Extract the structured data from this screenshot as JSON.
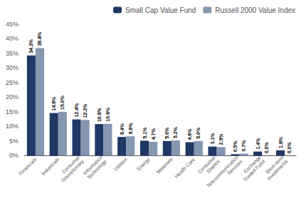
{
  "chart_data": {
    "type": "bar",
    "categories": [
      "Financials",
      "Industrials",
      "Consumer\nDiscretionary",
      "Information\nTechnology",
      "Utilities",
      "Energy",
      "Materials",
      "Health Care",
      "Consumer\nStaples",
      "Telecommunication\nServices",
      "Exchange\nTraded Fund",
      "Short-term\nInvestments"
    ],
    "series": [
      {
        "name": "Small Cap Value Fund",
        "color": "#1f3864",
        "values": [
          34.3,
          14.6,
          12.4,
          10.8,
          6.4,
          5.1,
          5.0,
          4.6,
          3.1,
          0.5,
          1.4,
          1.8
        ],
        "value_labels": [
          "34.3%",
          "14.6%",
          "12.4%",
          "10.8%",
          "6.4%",
          "5.1%",
          "5.0%",
          "4.6%",
          "3.1%",
          "0.5%",
          "1.4%",
          "1.8%"
        ]
      },
      {
        "name": "Russell 2000 Value Index",
        "color": "#8496b0",
        "values": [
          36.8,
          15.0,
          12.2,
          10.9,
          6.6,
          4.7,
          5.2,
          5.0,
          2.9,
          0.7,
          0.0,
          0.0
        ],
        "value_labels": [
          "36.8%",
          "15.0%",
          "12.2%",
          "10.9%",
          "6.6%",
          "4.7%",
          "5.2%",
          "5.0%",
          "2.9%",
          "0.7%",
          "0.0%",
          "0.0%"
        ]
      }
    ],
    "ylim": [
      0,
      45
    ],
    "yticks": [
      {
        "value": 0,
        "label": "0%"
      },
      {
        "value": 5,
        "label": "5%"
      },
      {
        "value": 10,
        "label": "10%"
      },
      {
        "value": 15,
        "label": "15%"
      },
      {
        "value": 20,
        "label": "20%"
      },
      {
        "value": 25,
        "label": "25%"
      },
      {
        "value": 30,
        "label": "30%"
      },
      {
        "value": 35,
        "label": "35%"
      },
      {
        "value": 40,
        "label": "40%"
      },
      {
        "value": 45,
        "label": "45%"
      }
    ],
    "grid": false,
    "legend": "upper right",
    "data_labels": true
  }
}
